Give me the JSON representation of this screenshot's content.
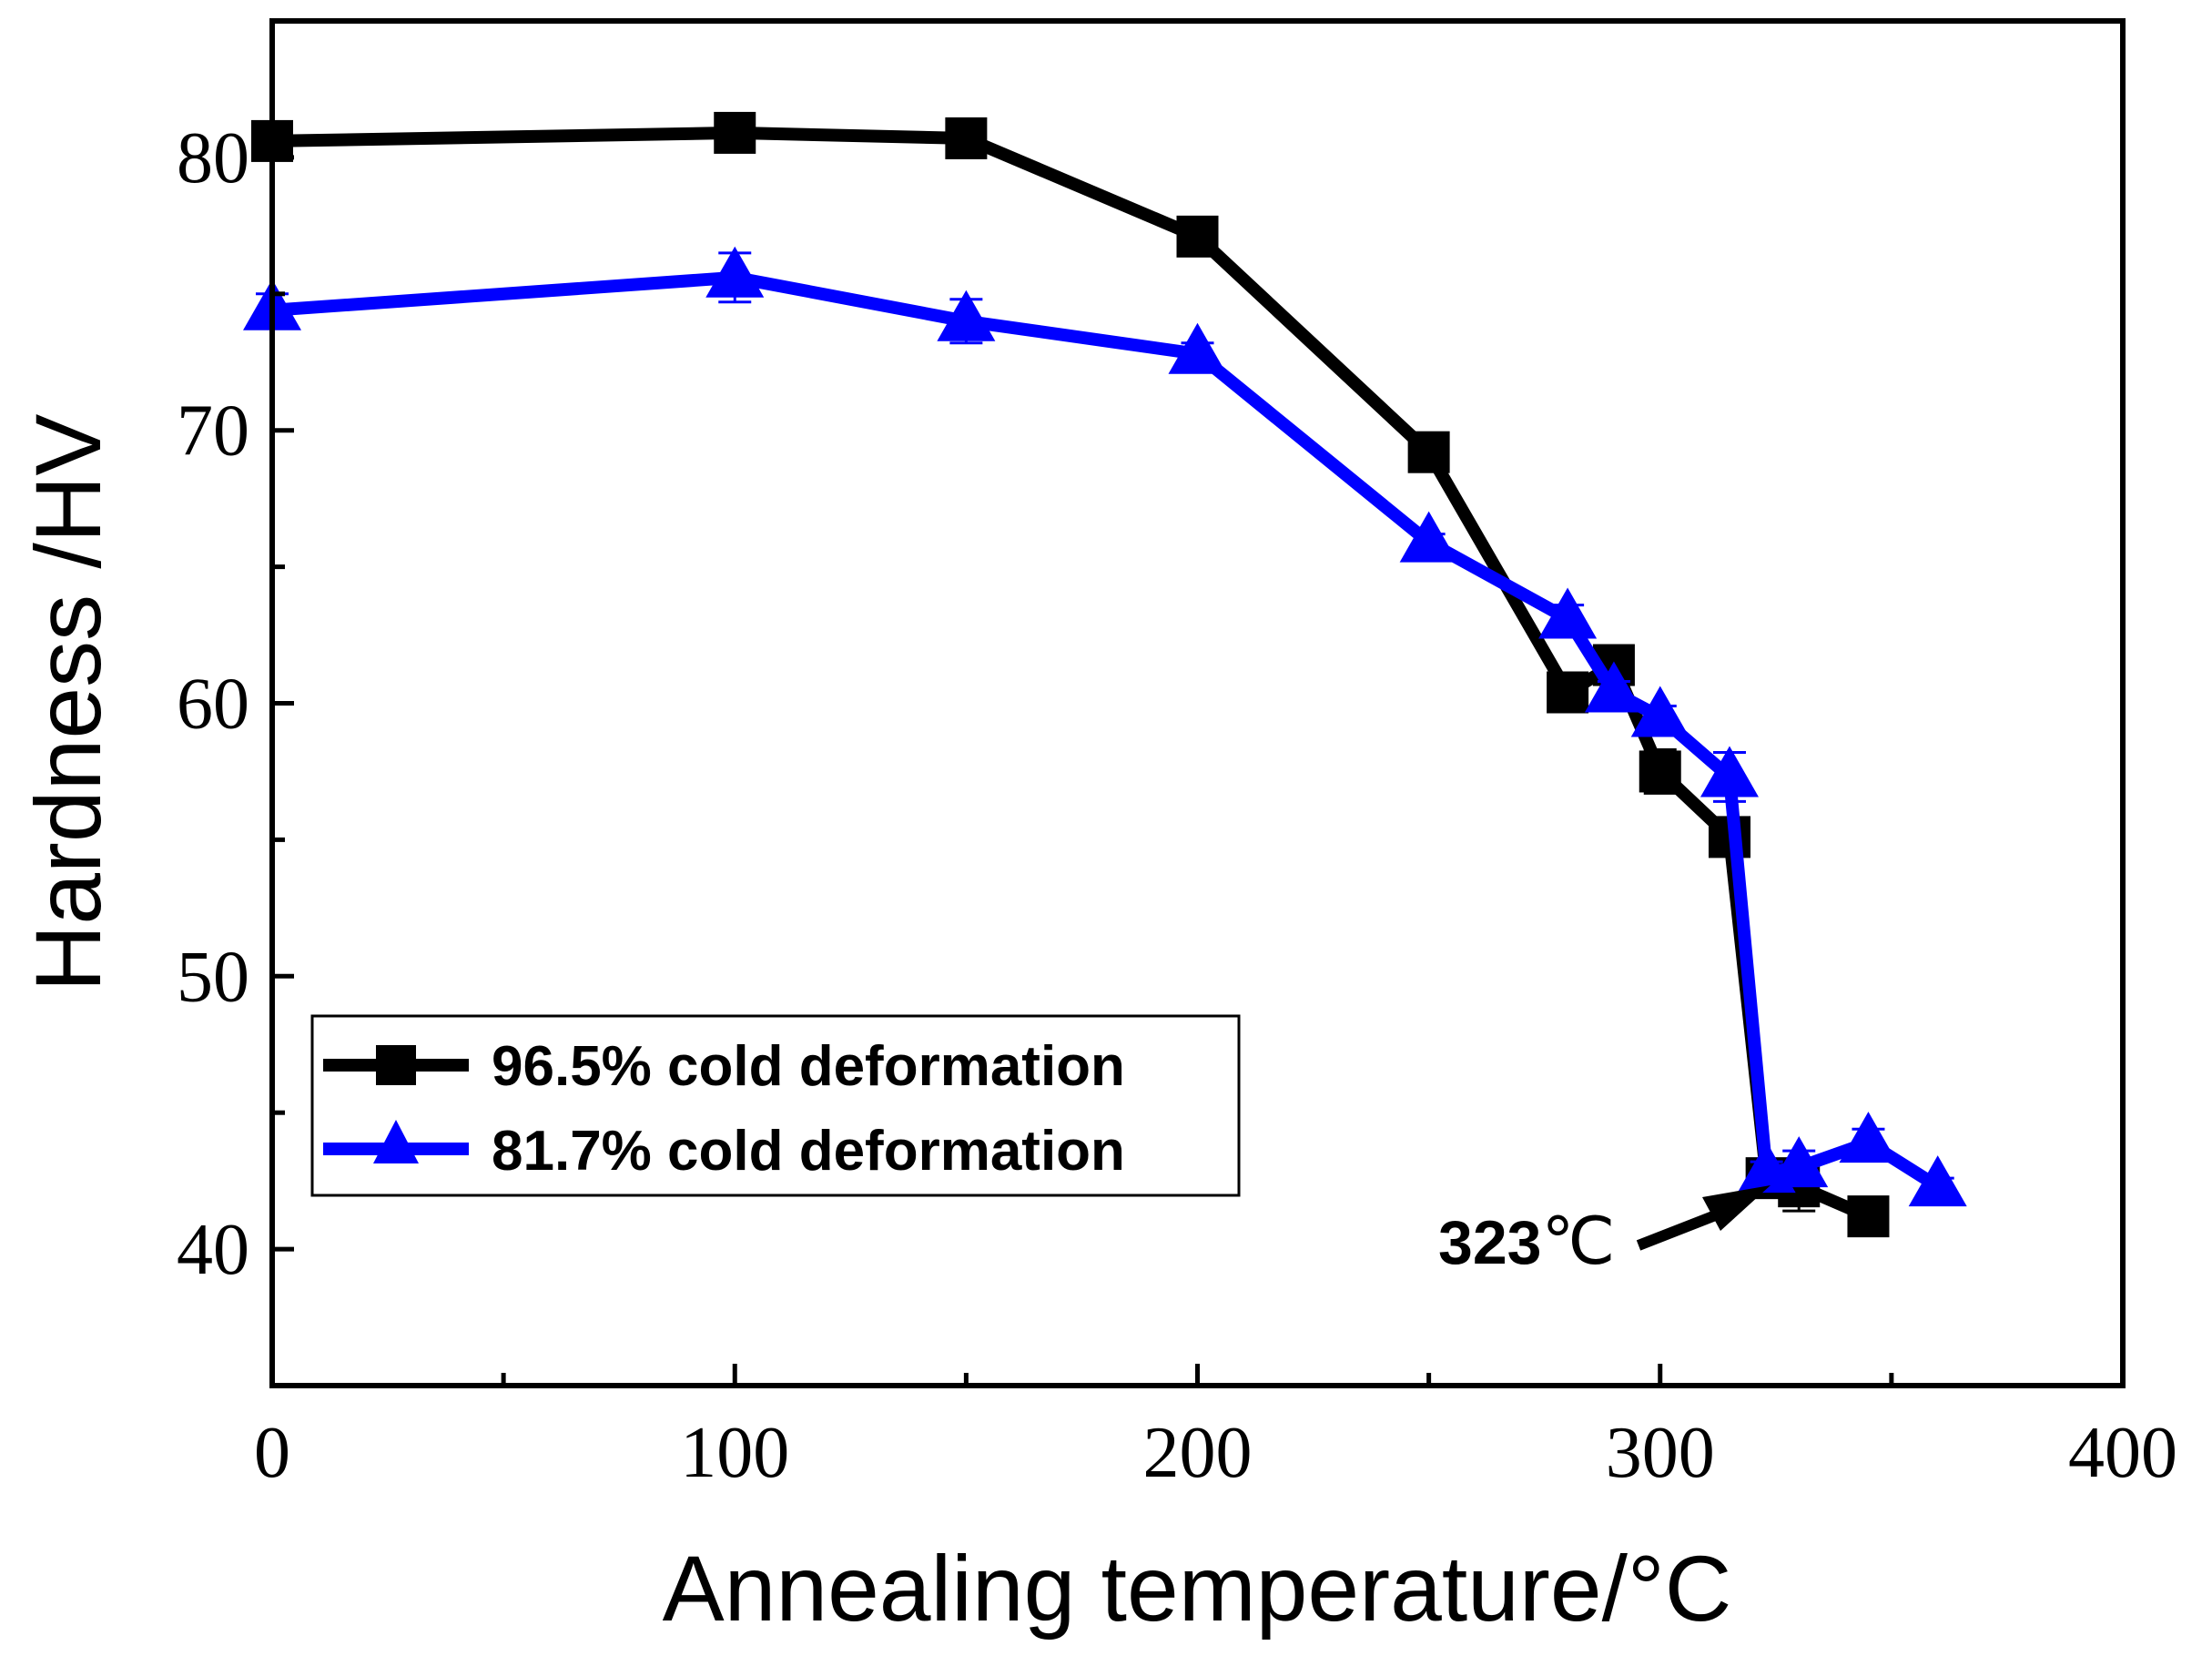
{
  "chart_data": {
    "type": "line",
    "title": "",
    "xlabel": "Annealing temperature/°C",
    "ylabel": "Hardness /HV",
    "xlim": [
      0,
      400
    ],
    "ylim": [
      35,
      85
    ],
    "xticks": [
      0,
      100,
      200,
      300,
      400
    ],
    "yticks": [
      40,
      50,
      60,
      70,
      80
    ],
    "xtick_labels": [
      "0",
      "100",
      "200",
      "300",
      "400"
    ],
    "ytick_labels": [
      "40",
      "50",
      "60",
      "70",
      "80"
    ],
    "grid": false,
    "legend_position": "bottom-left",
    "series": [
      {
        "name": "96.5% cold deformation",
        "color": "#000000",
        "marker": "square",
        "x": [
          0,
          100,
          150,
          200,
          250,
          280,
          290,
          300,
          315,
          323,
          330,
          345
        ],
        "y": [
          80.6,
          80.9,
          80.7,
          77.1,
          69.2,
          60.4,
          61.4,
          57.5,
          55.1,
          42.6,
          42.3,
          41.2
        ],
        "yerr": [
          0.5,
          0.4,
          0.4,
          0.3,
          0.5,
          0.3,
          0.7,
          0.8,
          0.5,
          0.4,
          0.9,
          0.3
        ]
      },
      {
        "name": "81.7% cold deformation",
        "color": "#0000ff",
        "marker": "triangle",
        "x": [
          0,
          100,
          150,
          200,
          250,
          280,
          290,
          300,
          315,
          323,
          330,
          345,
          360
        ],
        "y": [
          74.4,
          75.6,
          74.0,
          72.8,
          65.9,
          63.1,
          60.4,
          59.5,
          57.3,
          42.8,
          43.0,
          43.9,
          42.3
        ],
        "yerr": [
          0.6,
          0.9,
          0.8,
          0.4,
          0.3,
          0.5,
          0.4,
          0.4,
          0.9,
          0.4,
          0.6,
          0.5,
          0.3
        ]
      }
    ],
    "annotations": [
      {
        "text_bold": "323",
        "text_unit": "℃",
        "points_to": [
          323,
          42.6
        ]
      }
    ]
  }
}
